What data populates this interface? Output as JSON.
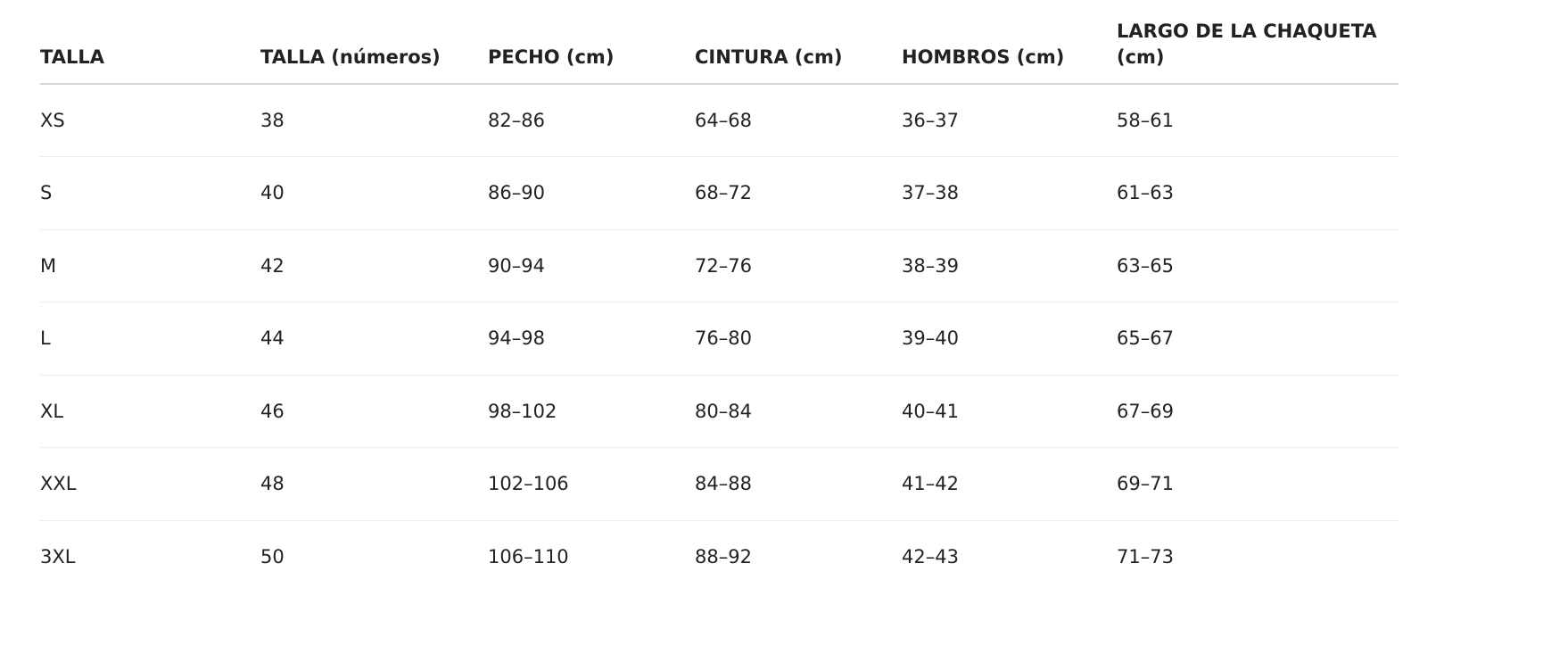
{
  "table": {
    "header": [
      "TALLA",
      "TALLA (números)",
      "PECHO (cm)",
      "CINTURA (cm)",
      "HOMBROS (cm)",
      "LARGO DE LA CHAQUETA (cm)"
    ],
    "rows": [
      [
        "XS",
        "38",
        "82–86",
        "64–68",
        "36–37",
        "58–61"
      ],
      [
        "S",
        "40",
        "86–90",
        "68–72",
        "37–38",
        "61–63"
      ],
      [
        "M",
        "42",
        "90–94",
        "72–76",
        "38–39",
        "63–65"
      ],
      [
        "L",
        "44",
        "94–98",
        "76–80",
        "39–40",
        "65–67"
      ],
      [
        "XL",
        "46",
        "98–102",
        "80–84",
        "40–41",
        "67–69"
      ],
      [
        "XXL",
        "48",
        "102–106",
        "84–88",
        "41–42",
        "69–71"
      ],
      [
        "3XL",
        "50",
        "106–110",
        "88–92",
        "42–43",
        "71–73"
      ]
    ]
  }
}
